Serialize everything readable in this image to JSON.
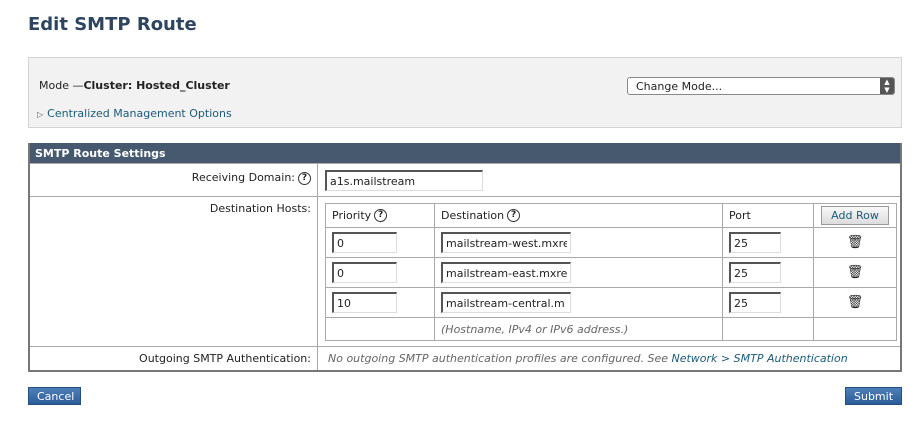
{
  "page": {
    "title": "Edit SMTP Route"
  },
  "mode": {
    "label": "Mode —",
    "value": "Cluster: Hosted_Cluster",
    "change_mode": "Change Mode...",
    "centralized": "Centralized Management Options"
  },
  "settings": {
    "header": "SMTP Route Settings",
    "receiving_domain_label": "Receiving Domain:",
    "receiving_domain": "a1s.mailstream",
    "destination_hosts_label": "Destination Hosts:",
    "columns": {
      "priority": "Priority",
      "destination": "Destination",
      "port": "Port",
      "add_row": "Add Row"
    },
    "hosts": [
      {
        "priority": "0",
        "destination": "mailstream-west.mxre",
        "port": "25"
      },
      {
        "priority": "0",
        "destination": "mailstream-east.mxrec",
        "port": "25"
      },
      {
        "priority": "10",
        "destination": "mailstream-central.m",
        "port": "25"
      }
    ],
    "hint": "(Hostname, IPv4 or IPv6 address.)",
    "outgoing_label": "Outgoing SMTP Authentication:",
    "outgoing_text": "No outgoing SMTP authentication profiles are configured. See ",
    "outgoing_link": "Network > SMTP Authentication"
  },
  "buttons": {
    "cancel": "Cancel",
    "submit": "Submit"
  },
  "icons": {
    "help": "?",
    "trash": "🗑"
  }
}
